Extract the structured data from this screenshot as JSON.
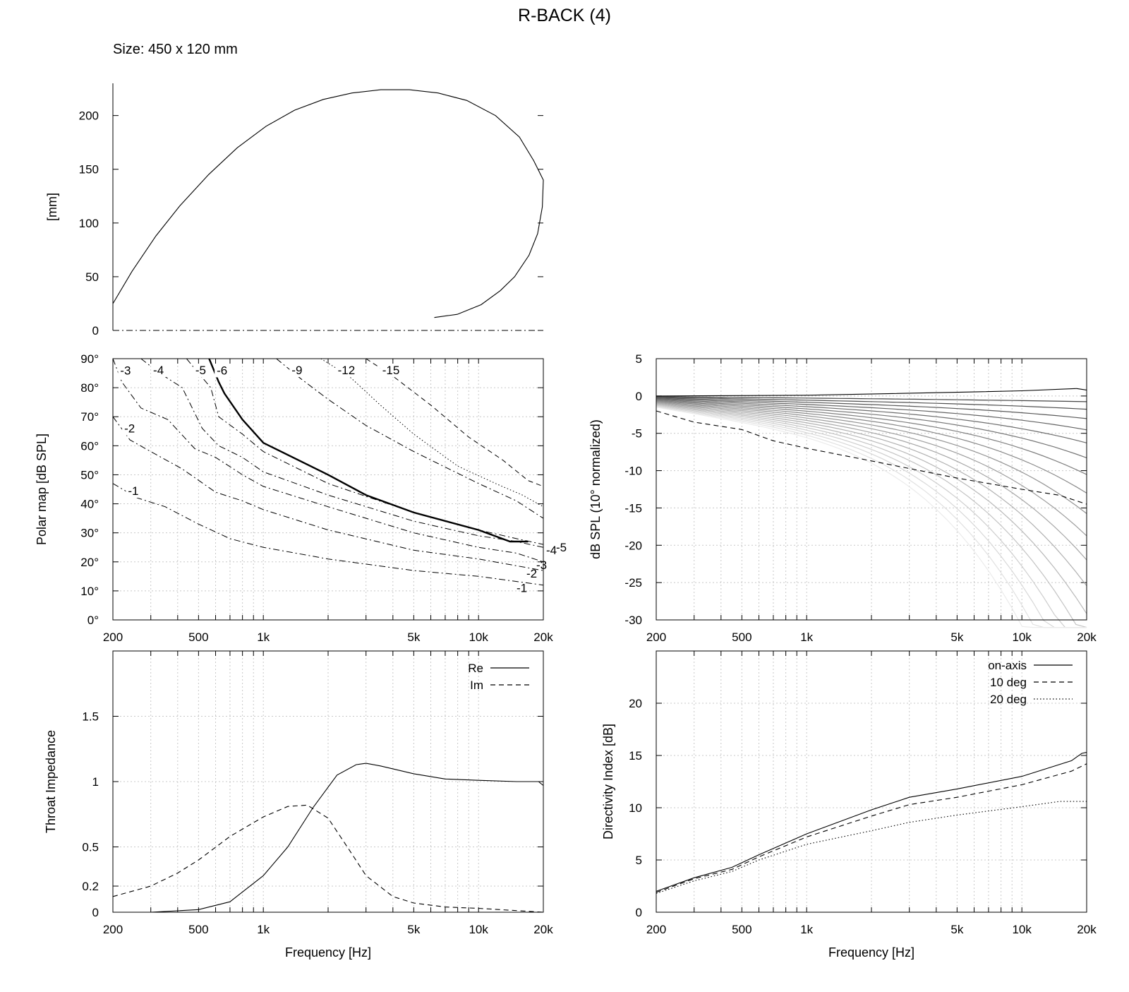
{
  "page": {
    "title": "R-BACK (4)",
    "size_label": "Size: 450 x 120 mm"
  },
  "colors": {
    "ink": "#000000",
    "grid": "#c8c8c8"
  },
  "chart_data": [
    {
      "id": "profile",
      "type": "line",
      "ylabel": "[mm]",
      "xlim": [
        0,
        450
      ],
      "ylim": [
        0,
        230
      ],
      "yticks": [
        0,
        50,
        100,
        150,
        200
      ],
      "series": [
        {
          "style": "solid",
          "points": [
            [
              0,
              25
            ],
            [
              20,
              55
            ],
            [
              45,
              88
            ],
            [
              70,
              116
            ],
            [
              100,
              145
            ],
            [
              130,
              170
            ],
            [
              160,
              190
            ],
            [
              190,
              205
            ],
            [
              220,
              215
            ],
            [
              250,
              221
            ],
            [
              280,
              224
            ],
            [
              310,
              224
            ],
            [
              340,
              221
            ],
            [
              370,
              214
            ],
            [
              400,
              200
            ],
            [
              425,
              180
            ],
            [
              440,
              158
            ],
            [
              450,
              140
            ],
            [
              449,
              115
            ],
            [
              444,
              90
            ],
            [
              435,
              70
            ],
            [
              420,
              50
            ],
            [
              405,
              37
            ],
            [
              385,
              24
            ],
            [
              360,
              15
            ],
            [
              336,
              12
            ]
          ]
        },
        {
          "style": "dashdot",
          "points": [
            [
              0,
              0
            ],
            [
              450,
              0
            ]
          ]
        }
      ]
    },
    {
      "id": "polar-map",
      "type": "line",
      "ylabel": "Polar map [dB SPL]",
      "xscale": "log",
      "xlim": [
        200,
        20000
      ],
      "ylim": [
        0,
        90
      ],
      "yticks": [
        0,
        10,
        20,
        30,
        40,
        50,
        60,
        70,
        80,
        90
      ],
      "ytick_labels": [
        "0°",
        "10°",
        "20°",
        "30°",
        "40°",
        "50°",
        "60°",
        "70°",
        "80°",
        "90°"
      ],
      "xticks": [
        200,
        500,
        1000,
        5000,
        10000,
        20000
      ],
      "xtick_labels": [
        "200",
        "500",
        "1k",
        "5k",
        "10k",
        "20k"
      ],
      "contours": [
        {
          "label": "-1",
          "style": "dashdot",
          "points": [
            [
              200,
              47
            ],
            [
              260,
              42
            ],
            [
              350,
              39
            ],
            [
              500,
              33
            ],
            [
              700,
              28
            ],
            [
              1000,
              25
            ],
            [
              2000,
              21
            ],
            [
              5000,
              17
            ],
            [
              10000,
              15
            ],
            [
              20000,
              12
            ]
          ]
        },
        {
          "label": "-2",
          "style": "dashdot",
          "points": [
            [
              200,
              70
            ],
            [
              240,
              62
            ],
            [
              300,
              58
            ],
            [
              420,
              52
            ],
            [
              600,
              44
            ],
            [
              800,
              41
            ],
            [
              1000,
              38
            ],
            [
              2000,
              31
            ],
            [
              5000,
              24
            ],
            [
              10000,
              21
            ],
            [
              20000,
              17
            ]
          ]
        },
        {
          "label": "-3",
          "style": "dashdot",
          "points": [
            [
              200,
              90
            ],
            [
              220,
              82
            ],
            [
              270,
              73
            ],
            [
              360,
              69
            ],
            [
              480,
              59
            ],
            [
              600,
              56
            ],
            [
              800,
              50
            ],
            [
              1000,
              46
            ],
            [
              2000,
              39
            ],
            [
              5000,
              30
            ],
            [
              10000,
              25
            ],
            [
              15000,
              23
            ],
            [
              20000,
              20
            ]
          ]
        },
        {
          "label": "-4",
          "style": "dashdot",
          "points": [
            [
              270,
              90
            ],
            [
              330,
              85
            ],
            [
              420,
              80
            ],
            [
              520,
              66
            ],
            [
              620,
              60
            ],
            [
              800,
              56
            ],
            [
              1000,
              51
            ],
            [
              2000,
              43
            ],
            [
              5000,
              34
            ],
            [
              10000,
              29
            ],
            [
              15000,
              27
            ],
            [
              20000,
              25
            ]
          ]
        },
        {
          "label": "-5",
          "style": "dashdot",
          "points": [
            [
              440,
              90
            ],
            [
              500,
              85
            ],
            [
              570,
              80
            ],
            [
              620,
              70
            ],
            [
              800,
              64
            ],
            [
              1000,
              58
            ],
            [
              2000,
              47
            ],
            [
              5000,
              37
            ],
            [
              10000,
              31
            ],
            [
              15000,
              28
            ],
            [
              20000,
              26
            ]
          ]
        },
        {
          "label": "-6",
          "style": "solid-bold",
          "points": [
            [
              560,
              90
            ],
            [
              620,
              82
            ],
            [
              660,
              78
            ],
            [
              800,
              69
            ],
            [
              1000,
              61
            ],
            [
              2000,
              50
            ],
            [
              3000,
              43
            ],
            [
              5000,
              37
            ],
            [
              10000,
              31
            ],
            [
              14000,
              27
            ],
            [
              17000,
              27
            ]
          ]
        },
        {
          "label": "-9",
          "style": "dashdot",
          "points": [
            [
              1150,
              90
            ],
            [
              1500,
              83
            ],
            [
              2000,
              76
            ],
            [
              3000,
              67
            ],
            [
              5000,
              58
            ],
            [
              10000,
              47
            ],
            [
              15000,
              41
            ],
            [
              20000,
              35
            ]
          ]
        },
        {
          "label": "-12",
          "style": "dotted",
          "points": [
            [
              1850,
              90
            ],
            [
              2500,
              84
            ],
            [
              3500,
              74
            ],
            [
              5000,
              64
            ],
            [
              8000,
              53
            ],
            [
              12000,
              47
            ],
            [
              16000,
              43
            ],
            [
              20000,
              39
            ]
          ]
        },
        {
          "label": "-15",
          "style": "dashed",
          "points": [
            [
              3000,
              90
            ],
            [
              4000,
              84
            ],
            [
              6000,
              74
            ],
            [
              9000,
              63
            ],
            [
              13000,
              55
            ],
            [
              17000,
              48
            ],
            [
              20000,
              46
            ]
          ]
        }
      ]
    },
    {
      "id": "normalized-spl",
      "type": "line",
      "ylabel": "dB SPL (10° normalized)",
      "xscale": "log",
      "xlim": [
        200,
        20000
      ],
      "ylim": [
        -30,
        5
      ],
      "yticks": [
        -30,
        -25,
        -20,
        -15,
        -10,
        -5,
        0,
        5
      ],
      "xticks": [
        200,
        500,
        1000,
        5000,
        10000,
        20000
      ],
      "xtick_labels": [
        "200",
        "500",
        "1k",
        "5k",
        "10k",
        "20k"
      ],
      "series": [
        {
          "name": "",
          "style": "dashed",
          "points": [
            [
              200,
              -2
            ],
            [
              300,
              -3.5
            ],
            [
              500,
              -4.5
            ],
            [
              700,
              -6
            ],
            [
              1000,
              -7
            ],
            [
              2000,
              -8.7
            ],
            [
              5000,
              -11
            ],
            [
              10000,
              -12.5
            ],
            [
              15000,
              -13.3
            ],
            [
              20000,
              -14.5
            ]
          ]
        },
        {
          "name": "",
          "style": "solid",
          "points": [
            [
              200,
              0
            ],
            [
              1000,
              0.1
            ],
            [
              5000,
              0.5
            ],
            [
              10000,
              0.7
            ],
            [
              18000,
              1
            ],
            [
              20000,
              0.8
            ]
          ]
        }
      ],
      "fan_families": 18
    },
    {
      "id": "throat-impedance",
      "type": "line",
      "ylabel": "Throat Impedance",
      "xlabel": "Frequency [Hz]",
      "xscale": "log",
      "xlim": [
        200,
        20000
      ],
      "ylim": [
        0,
        2
      ],
      "yticks": [
        0,
        0.2,
        0.5,
        1,
        1.5
      ],
      "ytick_labels": [
        "0",
        "0.2",
        "0.5",
        "1",
        "1.5"
      ],
      "xticks": [
        200,
        500,
        1000,
        5000,
        10000,
        20000
      ],
      "xtick_labels": [
        "200",
        "500",
        "1k",
        "5k",
        "10k",
        "20k"
      ],
      "legend_position": "top-right",
      "series": [
        {
          "name": "Re",
          "style": "solid",
          "points": [
            [
              300,
              0
            ],
            [
              500,
              0.02
            ],
            [
              700,
              0.08
            ],
            [
              1000,
              0.28
            ],
            [
              1300,
              0.5
            ],
            [
              1700,
              0.8
            ],
            [
              2200,
              1.05
            ],
            [
              2700,
              1.13
            ],
            [
              3000,
              1.14
            ],
            [
              3500,
              1.12
            ],
            [
              5000,
              1.06
            ],
            [
              7000,
              1.02
            ],
            [
              10000,
              1.01
            ],
            [
              15000,
              1.0
            ],
            [
              19000,
              1.0
            ],
            [
              20000,
              0.97
            ]
          ]
        },
        {
          "name": "Im",
          "style": "dashed",
          "points": [
            [
              200,
              0.12
            ],
            [
              300,
              0.2
            ],
            [
              400,
              0.3
            ],
            [
              500,
              0.4
            ],
            [
              700,
              0.58
            ],
            [
              1000,
              0.73
            ],
            [
              1300,
              0.81
            ],
            [
              1600,
              0.82
            ],
            [
              2000,
              0.72
            ],
            [
              2500,
              0.48
            ],
            [
              3000,
              0.28
            ],
            [
              4000,
              0.12
            ],
            [
              5000,
              0.07
            ],
            [
              7000,
              0.04
            ],
            [
              10000,
              0.03
            ],
            [
              20000,
              0
            ]
          ]
        }
      ]
    },
    {
      "id": "directivity-index",
      "type": "line",
      "ylabel": "Directivity Index [dB]",
      "xlabel": "Frequency [Hz]",
      "xscale": "log",
      "xlim": [
        200,
        20000
      ],
      "ylim": [
        0,
        25
      ],
      "yticks": [
        0,
        5,
        10,
        15,
        20
      ],
      "xticks": [
        200,
        500,
        1000,
        5000,
        10000,
        20000
      ],
      "xtick_labels": [
        "200",
        "500",
        "1k",
        "5k",
        "10k",
        "20k"
      ],
      "legend_position": "top-right",
      "series": [
        {
          "name": "on-axis",
          "style": "solid",
          "points": [
            [
              200,
              2
            ],
            [
              300,
              3.3
            ],
            [
              450,
              4.3
            ],
            [
              600,
              5.5
            ],
            [
              1000,
              7.5
            ],
            [
              2000,
              9.8
            ],
            [
              3000,
              11
            ],
            [
              5000,
              11.8
            ],
            [
              10000,
              13
            ],
            [
              17000,
              14.5
            ],
            [
              19000,
              15.2
            ],
            [
              20000,
              15.3
            ]
          ]
        },
        {
          "name": "10 deg",
          "style": "dashed",
          "points": [
            [
              200,
              1.9
            ],
            [
              300,
              3.2
            ],
            [
              450,
              4.1
            ],
            [
              600,
              5.3
            ],
            [
              1000,
              7.2
            ],
            [
              2000,
              9.2
            ],
            [
              3000,
              10.3
            ],
            [
              5000,
              11
            ],
            [
              10000,
              12.2
            ],
            [
              17000,
              13.5
            ],
            [
              20000,
              14.2
            ]
          ]
        },
        {
          "name": "20 deg",
          "style": "dotted",
          "points": [
            [
              200,
              1.8
            ],
            [
              300,
              3
            ],
            [
              450,
              3.9
            ],
            [
              600,
              5
            ],
            [
              1000,
              6.5
            ],
            [
              2000,
              7.8
            ],
            [
              3000,
              8.6
            ],
            [
              5000,
              9.3
            ],
            [
              10000,
              10.1
            ],
            [
              15000,
              10.6
            ],
            [
              20000,
              10.6
            ]
          ]
        }
      ]
    }
  ]
}
